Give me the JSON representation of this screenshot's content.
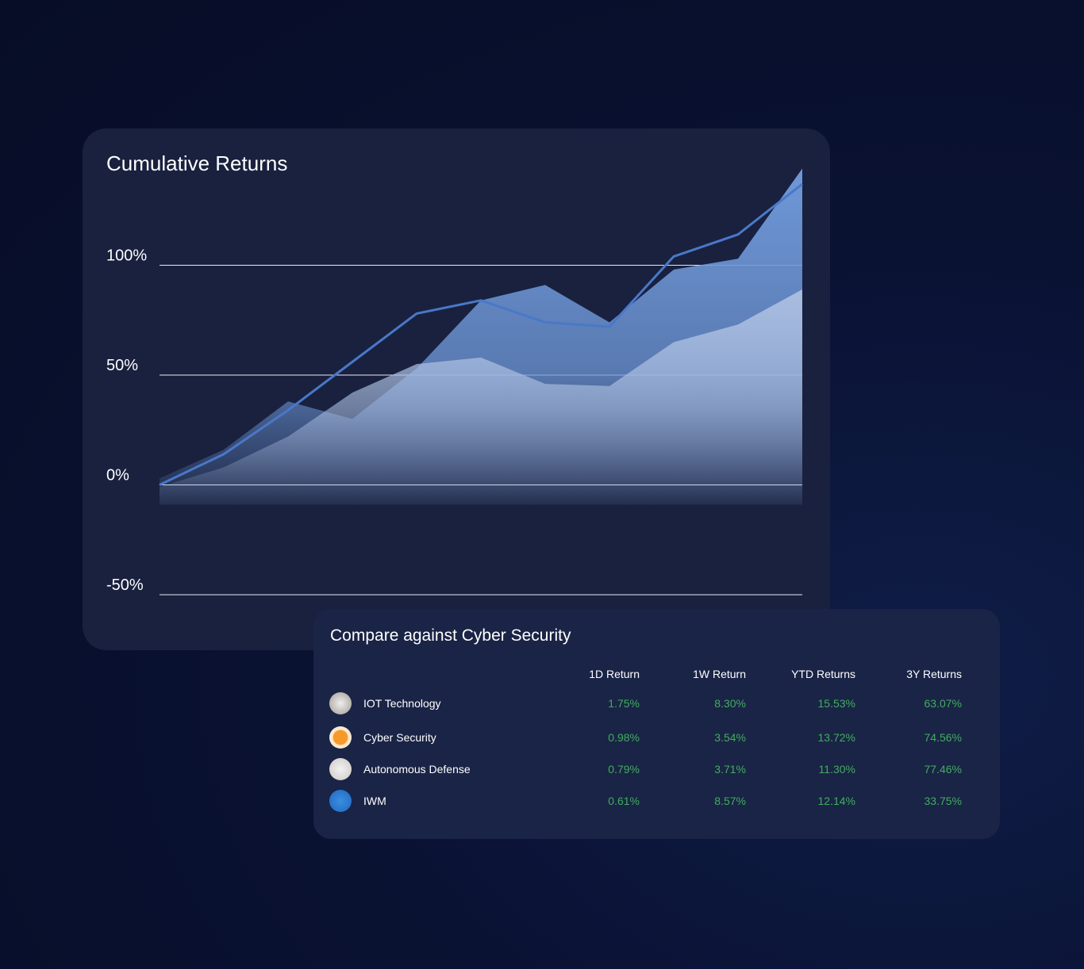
{
  "chart_data": {
    "type": "line",
    "title": "Cumulative Returns",
    "categories": [
      null,
      null,
      null,
      null,
      null,
      null,
      null,
      null,
      null,
      null,
      null
    ],
    "series": [
      {
        "style": "area",
        "color": "#6f98d8",
        "values": [
          3,
          16,
          38,
          30,
          53,
          84,
          91,
          74,
          98,
          103,
          144
        ]
      },
      {
        "style": "area",
        "color": "#a9bde0",
        "values": [
          -1,
          8,
          22,
          42,
          55,
          58,
          46,
          45,
          65,
          73,
          89
        ]
      },
      {
        "style": "line",
        "color": "#4a78c8",
        "values": [
          0,
          14,
          34,
          56,
          78,
          84,
          74,
          72,
          104,
          114,
          137
        ]
      }
    ],
    "ylim": [
      -50,
      150
    ],
    "yticks": [
      {
        "value": -50,
        "label": "-50%"
      },
      {
        "value": 0,
        "label": "0%"
      },
      {
        "value": 50,
        "label": "50%"
      },
      {
        "value": 100,
        "label": "100%"
      }
    ],
    "grid": true
  },
  "table": {
    "title": "Compare against Cyber Security",
    "header": [
      "1D Return",
      "1W Return",
      "YTD Returns",
      "3Y Returns"
    ],
    "rows": [
      [
        "IOT Technology",
        "1.75%",
        "8.30%",
        "15.53%",
        "63.07%"
      ],
      [
        "Cyber Security",
        "0.98%",
        "3.54%",
        "13.72%",
        "74.56%"
      ],
      [
        "Autonomous Defense",
        "0.79%",
        "3.71%",
        "11.30%",
        "77.46%"
      ],
      [
        "IWM",
        "0.61%",
        "8.57%",
        "12.14%",
        "33.75%"
      ]
    ]
  }
}
